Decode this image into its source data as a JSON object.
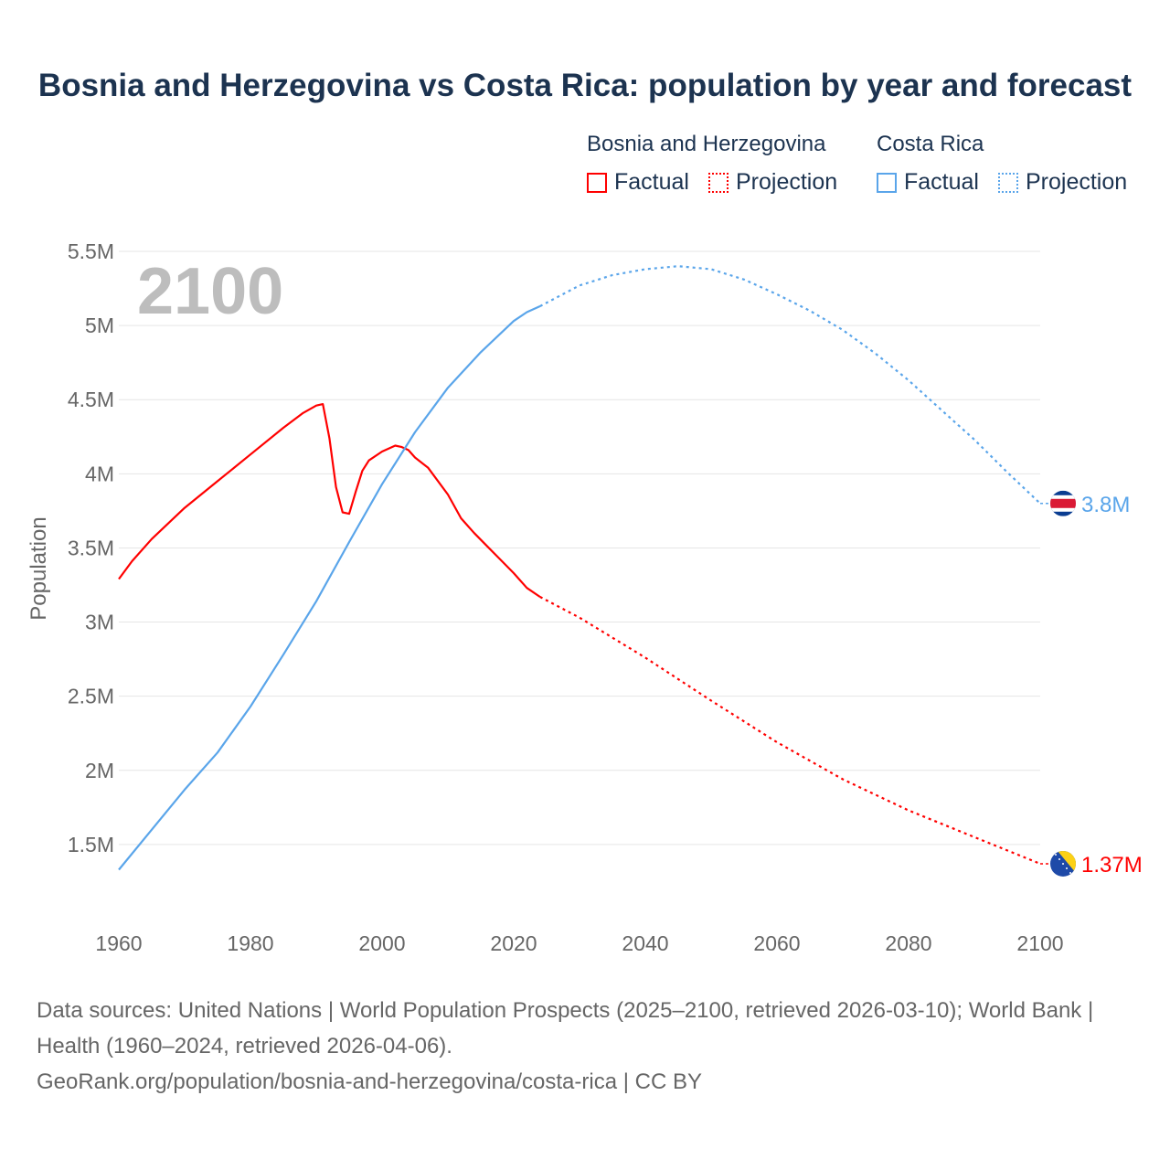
{
  "title": "Bosnia and Herzegovina vs Costa Rica: population by year and forecast",
  "legend": {
    "groups": [
      {
        "name": "Bosnia and Herzegovina",
        "color": "#ff0000",
        "factual": "Factual",
        "projection": "Projection"
      },
      {
        "name": "Costa Rica",
        "color": "#5aa5ea",
        "factual": "Factual",
        "projection": "Projection"
      }
    ]
  },
  "year_overlay": "2100",
  "chart_data": {
    "type": "line",
    "title": "Bosnia and Herzegovina vs Costa Rica: population by year and forecast",
    "xlabel": "",
    "ylabel": "Population",
    "xlim": [
      1960,
      2100
    ],
    "ylim": [
      1.0,
      5.5
    ],
    "x_ticks": [
      1960,
      1980,
      2000,
      2020,
      2040,
      2060,
      2080,
      2100
    ],
    "x_tick_labels": [
      "1960",
      "1980",
      "2000",
      "2020",
      "2040",
      "2060",
      "2080",
      "2100"
    ],
    "y_ticks": [
      1.5,
      2,
      2.5,
      3,
      3.5,
      4,
      4.5,
      5,
      5.5
    ],
    "y_tick_labels": [
      "1.5M",
      "2M",
      "2.5M",
      "3M",
      "3.5M",
      "4M",
      "4.5M",
      "5M",
      "5.5M"
    ],
    "grid": true,
    "units": "millions",
    "series": [
      {
        "name": "Bosnia and Herzegovina",
        "color": "#ff0000",
        "end_label": "1.37M",
        "factual": {
          "x": [
            1960,
            1962,
            1965,
            1970,
            1975,
            1980,
            1985,
            1988,
            1990,
            1991,
            1992,
            1993,
            1994,
            1995,
            1996,
            1997,
            1998,
            2000,
            2002,
            2003,
            2004,
            2005,
            2007,
            2010,
            2012,
            2014,
            2016,
            2018,
            2020,
            2022,
            2024
          ],
          "y": [
            3.29,
            3.41,
            3.56,
            3.77,
            3.95,
            4.13,
            4.31,
            4.41,
            4.46,
            4.47,
            4.24,
            3.91,
            3.74,
            3.73,
            3.88,
            4.02,
            4.09,
            4.15,
            4.19,
            4.18,
            4.16,
            4.11,
            4.04,
            3.86,
            3.7,
            3.6,
            3.51,
            3.42,
            3.33,
            3.23,
            3.17
          ]
        },
        "projection": {
          "x": [
            2024,
            2030,
            2040,
            2050,
            2060,
            2070,
            2080,
            2090,
            2100
          ],
          "y": [
            3.17,
            3.03,
            2.76,
            2.47,
            2.19,
            1.94,
            1.73,
            1.55,
            1.37
          ]
        }
      },
      {
        "name": "Costa Rica",
        "color": "#5aa5ea",
        "end_label": "3.8M",
        "factual": {
          "x": [
            1960,
            1965,
            1970,
            1975,
            1980,
            1985,
            1990,
            1995,
            2000,
            2005,
            2010,
            2015,
            2020,
            2022,
            2024
          ],
          "y": [
            1.33,
            1.6,
            1.87,
            2.12,
            2.43,
            2.78,
            3.14,
            3.54,
            3.93,
            4.28,
            4.58,
            4.82,
            5.03,
            5.09,
            5.13
          ]
        },
        "projection": {
          "x": [
            2024,
            2030,
            2035,
            2040,
            2045,
            2050,
            2055,
            2060,
            2065,
            2070,
            2075,
            2080,
            2085,
            2090,
            2095,
            2100
          ],
          "y": [
            5.13,
            5.27,
            5.34,
            5.38,
            5.4,
            5.38,
            5.31,
            5.21,
            5.1,
            4.97,
            4.81,
            4.63,
            4.43,
            4.23,
            4.01,
            3.8
          ]
        }
      }
    ]
  },
  "footer": {
    "sources": "Data sources: United Nations | World Population Prospects (2025–2100, retrieved 2026-03-10); World Bank | Health (1960–2024, retrieved 2026-04-06).",
    "link": "GeoRank.org/population/bosnia-and-herzegovina/costa-rica | CC BY"
  }
}
